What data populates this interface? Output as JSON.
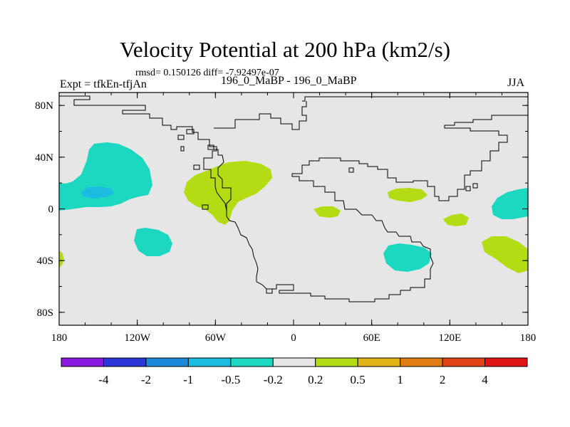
{
  "chart_data": {
    "type": "heatmap",
    "title": "Velocity Potential at 200 hPa (km2/s)",
    "stats_text": "rmsd= 0.150126 diff= -7.92497e-07",
    "left_label": "Expt = tfkEn-tfjAn",
    "center_label": "196_0_MaBP - 196_0_MaBP",
    "right_label": "JJA",
    "x_ticks": [
      "180",
      "120W",
      "60W",
      "0",
      "60E",
      "120E",
      "180"
    ],
    "x_tick_values": [
      -180,
      -120,
      -60,
      0,
      60,
      120,
      180
    ],
    "y_ticks": [
      "80N",
      "40N",
      "0",
      "40S",
      "80S"
    ],
    "y_tick_values": [
      80,
      40,
      0,
      -40,
      -80
    ],
    "xlim": [
      -180,
      180
    ],
    "ylim": [
      -90,
      90
    ],
    "map_background": "#e6e6e6",
    "colorbar": {
      "labels": [
        "-4",
        "-2",
        "-1",
        "-0.5",
        "-0.2",
        "0.2",
        "0.5",
        "1",
        "2",
        "4"
      ],
      "colors": [
        "#8a1ae0",
        "#2a36d8",
        "#1e88d8",
        "#1cbce0",
        "#1cd8c0",
        "#e6e6e6",
        "#b4dc14",
        "#e0b414",
        "#e07c14",
        "#e04414",
        "#e01414"
      ]
    },
    "regions": [
      {
        "name": "cyan",
        "color": "#1cd8c0",
        "centers": [
          [
            -140,
            22
          ],
          [
            -111,
            -18
          ],
          [
            -2,
            8
          ],
          [
            157,
            5
          ],
          [
            105,
            -35
          ],
          [
            -180,
            -36
          ]
        ]
      },
      {
        "name": "blue",
        "color": "#1cbce0",
        "centers": [
          [
            -162,
            12
          ]
        ]
      },
      {
        "name": "lime",
        "color": "#b4dc14",
        "centers": [
          [
            -65,
            18
          ],
          [
            42,
            -1
          ],
          [
            91,
            12
          ],
          [
            123,
            -7
          ],
          [
            157,
            -38
          ],
          [
            -180,
            -36
          ]
        ]
      }
    ]
  }
}
